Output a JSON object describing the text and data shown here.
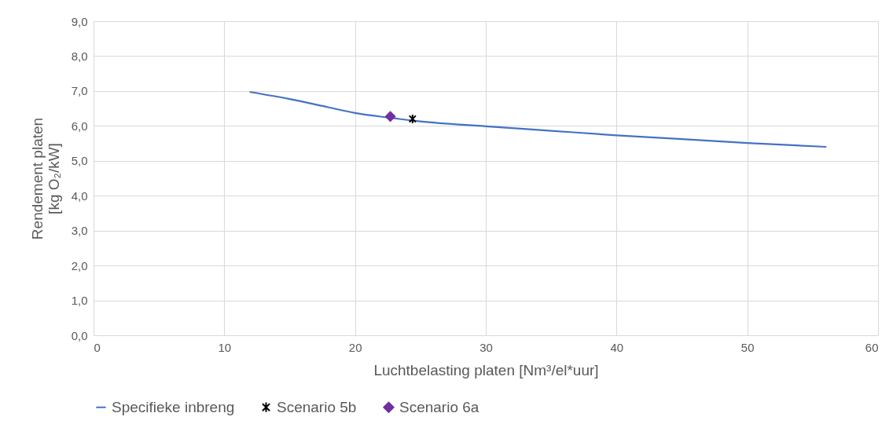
{
  "chart_data": {
    "type": "line",
    "xlabel": "Luchtbelasting platen [Nm³/el*uur]",
    "ylabel": "Rendement platen\n[kg O₂/kW]",
    "xlim": [
      0,
      60
    ],
    "xticks": [
      0,
      10,
      20,
      30,
      40,
      50,
      60
    ],
    "ylim": [
      0,
      9
    ],
    "yticks": [
      {
        "value": 0,
        "label": "0,0"
      },
      {
        "value": 1,
        "label": "1,0"
      },
      {
        "value": 2,
        "label": "2,0"
      },
      {
        "value": 3,
        "label": "3,0"
      },
      {
        "value": 4,
        "label": "4,0"
      },
      {
        "value": 5,
        "label": "5,0"
      },
      {
        "value": 6,
        "label": "6,0"
      },
      {
        "value": 7,
        "label": "7,0"
      },
      {
        "value": 8,
        "label": "8,0"
      },
      {
        "value": 9,
        "label": "9,0"
      }
    ],
    "grid": true,
    "legend": "bottom",
    "series": [
      {
        "name": "Specifieke inbreng",
        "marker": "none",
        "color": "#4472c4",
        "x": [
          12,
          15,
          18,
          20,
          22.5,
          25,
          30,
          35,
          40,
          45,
          50,
          56
        ],
        "values": [
          6.97,
          6.77,
          6.53,
          6.37,
          6.24,
          6.13,
          5.99,
          5.86,
          5.73,
          5.62,
          5.51,
          5.4
        ]
      },
      {
        "name": "Scenario 5b",
        "type": "scatter",
        "marker": "cross",
        "color": "#000000",
        "x": [
          24.4
        ],
        "values": [
          6.2
        ]
      },
      {
        "name": "Scenario 6a",
        "type": "scatter",
        "marker": "diamond",
        "color": "#7030a0",
        "x": [
          22.7
        ],
        "values": [
          6.27
        ]
      }
    ]
  }
}
